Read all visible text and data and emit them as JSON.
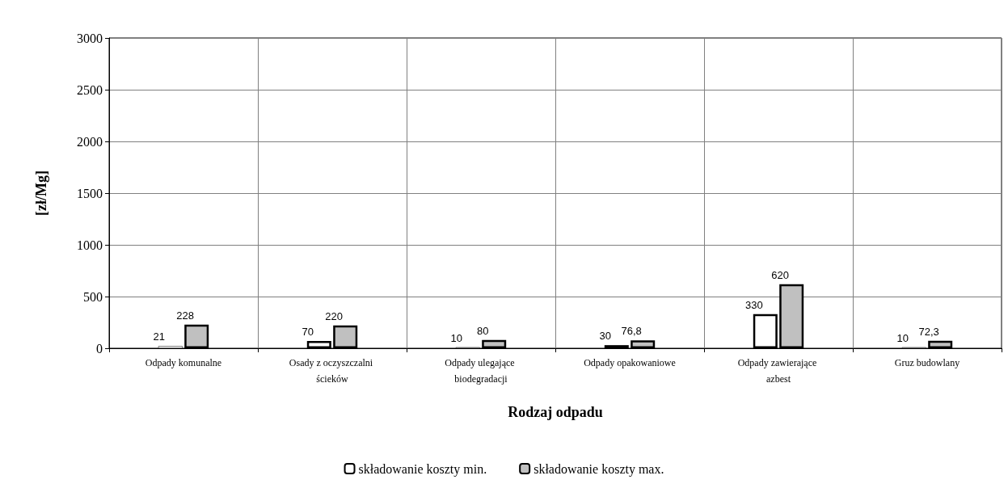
{
  "chart_data": {
    "type": "bar",
    "xlabel": "Rodzaj odpadu",
    "ylabel": "[zł/Mg]",
    "categories": [
      "Odpady komunalne",
      "Osady z oczyszczalni ścieków",
      "Odpady ulegające biodegradacji",
      "Odpady opakowaniowe",
      "Odpady zawierające azbest",
      "Gruz budowlany"
    ],
    "series": [
      {
        "name": "składowanie koszty min.",
        "color": "#ffffff",
        "values": [
          21,
          70,
          10,
          30,
          330,
          10
        ],
        "value_labels": [
          "21",
          "70",
          "10",
          "30",
          "330",
          "10"
        ]
      },
      {
        "name": "składowanie koszty max.",
        "color": "#c0c0c0",
        "values": [
          228,
          220,
          80,
          76.8,
          620,
          72.3
        ],
        "value_labels": [
          "228",
          "220",
          "80",
          "76,8",
          "620",
          "72,3"
        ]
      }
    ],
    "ylim": [
      0,
      3000
    ],
    "yticks": [
      0,
      500,
      1000,
      1500,
      2000,
      2500,
      3000
    ],
    "grid": true,
    "legend": "bottom"
  }
}
